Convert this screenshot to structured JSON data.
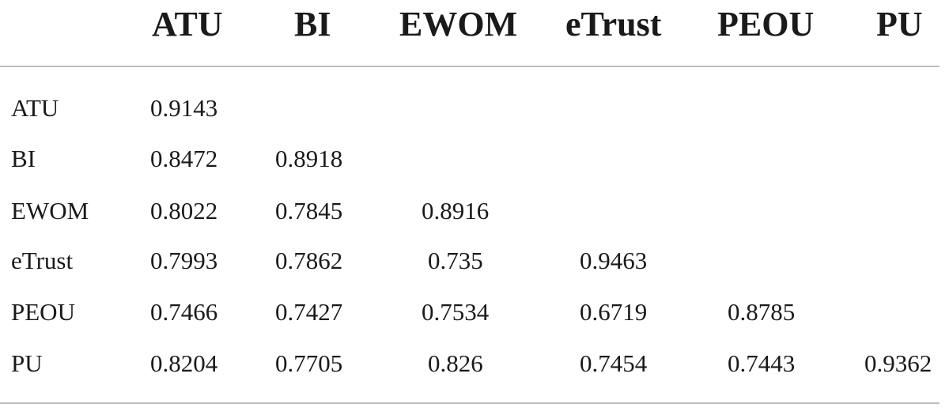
{
  "table": {
    "columns": [
      "ATU",
      "BI",
      "EWOM",
      "eTrust",
      "PEOU",
      "PU"
    ],
    "rows": [
      {
        "label": "ATU",
        "values": [
          "0.9143",
          "",
          "",
          "",
          "",
          ""
        ]
      },
      {
        "label": "BI",
        "values": [
          "0.8472",
          "0.8918",
          "",
          "",
          "",
          ""
        ]
      },
      {
        "label": "EWOM",
        "values": [
          "0.8022",
          "0.7845",
          "0.8916",
          "",
          "",
          ""
        ]
      },
      {
        "label": "eTrust",
        "values": [
          "0.7993",
          "0.7862",
          "0.735",
          "0.9463",
          "",
          ""
        ]
      },
      {
        "label": "PEOU",
        "values": [
          "0.7466",
          "0.7427",
          "0.7534",
          "0.6719",
          "0.8785",
          ""
        ]
      },
      {
        "label": "PU",
        "values": [
          "0.8204",
          "0.7705",
          "0.826",
          "0.7454",
          "0.7443",
          "0.9362"
        ]
      }
    ]
  }
}
